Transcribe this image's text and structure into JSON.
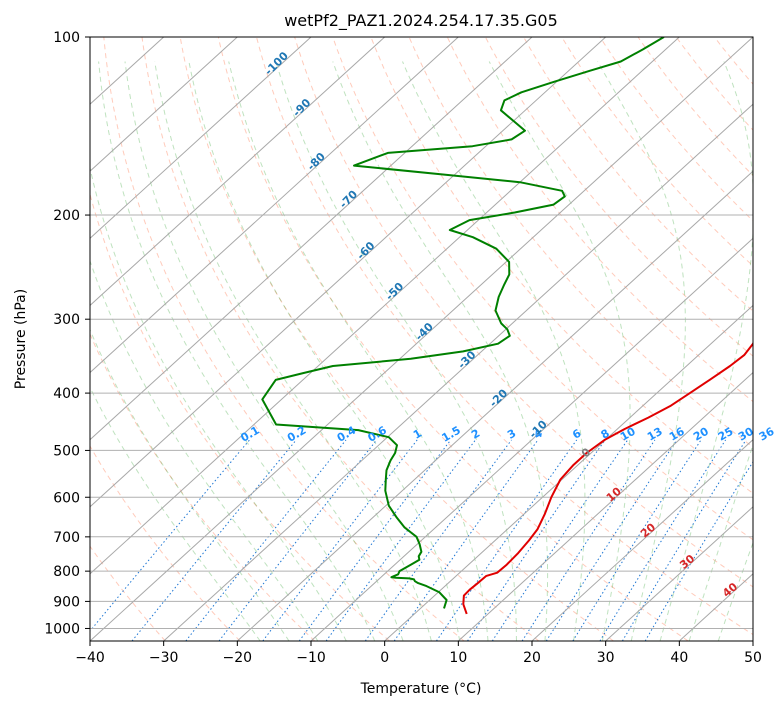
{
  "chart_data": {
    "type": "skew-t log-p",
    "title": "wetPf2_PAZ1.2024.254.17.35.G05",
    "xlabel": "Temperature (°C)",
    "ylabel": "Pressure (hPa)",
    "xlim": [
      -40,
      50
    ],
    "ylim": [
      1050,
      100
    ],
    "y_scale": "log",
    "grid": true,
    "x_ticks": [
      -40,
      -30,
      -20,
      -10,
      0,
      10,
      20,
      30,
      40,
      50
    ],
    "y_ticks": [
      100,
      200,
      300,
      400,
      500,
      600,
      700,
      800,
      900,
      1000
    ],
    "isotherm_labels": [
      {
        "label": "-100",
        "temp": -100,
        "pressure": 112
      },
      {
        "label": "-90",
        "temp": -90,
        "pressure": 133
      },
      {
        "label": "-80",
        "temp": -80,
        "pressure": 164
      },
      {
        "label": "-70",
        "temp": -70,
        "pressure": 190
      },
      {
        "label": "-60",
        "temp": -60,
        "pressure": 232
      },
      {
        "label": "-50",
        "temp": -50,
        "pressure": 272
      },
      {
        "label": "-40",
        "temp": -40,
        "pressure": 318
      },
      {
        "label": "-30",
        "temp": -30,
        "pressure": 355
      },
      {
        "label": "-20",
        "temp": -20,
        "pressure": 412
      },
      {
        "label": "-10",
        "temp": -10,
        "pressure": 465
      }
    ],
    "mixing_ratio_labels": [
      "0.1",
      "0.2",
      "0.4",
      "0.6",
      "1",
      "1.5",
      "2",
      "3",
      "4",
      "6",
      "8",
      "10",
      "13",
      "16",
      "20",
      "25",
      "30",
      "36"
    ],
    "moist_adiabat_labels": [
      "0",
      "10",
      "20",
      "30",
      "40"
    ],
    "series": [
      {
        "name": "",
        "color": "#e00000",
        "points": [
          [
            7.1,
            945
          ],
          [
            5.2,
            910
          ],
          [
            4.0,
            880
          ],
          [
            3.9,
            860
          ],
          [
            4.0,
            840
          ],
          [
            4.1,
            815
          ],
          [
            5.1,
            805
          ],
          [
            5.2,
            780
          ],
          [
            5.0,
            745
          ],
          [
            4.6,
            710
          ],
          [
            4.1,
            680
          ],
          [
            2.8,
            640
          ],
          [
            1.2,
            600
          ],
          [
            -0.2,
            560
          ],
          [
            -0.6,
            530
          ],
          [
            -0.6,
            505
          ],
          [
            -0.1,
            480
          ],
          [
            1.0,
            460
          ],
          [
            2.5,
            440
          ],
          [
            3.8,
            420
          ],
          [
            4.5,
            400
          ],
          [
            5.2,
            380
          ],
          [
            5.9,
            360
          ],
          [
            6.2,
            345
          ],
          [
            5.7,
            330
          ],
          [
            4.6,
            315
          ],
          [
            3.3,
            300
          ],
          [
            2.3,
            285
          ],
          [
            1.7,
            270
          ],
          [
            1.6,
            260
          ],
          [
            2.1,
            250
          ],
          [
            4.2,
            240
          ],
          [
            7.3,
            230
          ],
          [
            10.7,
            220
          ],
          [
            13.6,
            210
          ],
          [
            16.4,
            200
          ],
          [
            19.2,
            190
          ],
          [
            21.6,
            180
          ],
          [
            23.9,
            170
          ],
          [
            25.8,
            160
          ],
          [
            27.6,
            150
          ],
          [
            29.8,
            140
          ],
          [
            33.2,
            130
          ],
          [
            36.4,
            120
          ],
          [
            39.2,
            110
          ],
          [
            42.3,
            100
          ]
        ]
      },
      {
        "name": "",
        "color": "#008000",
        "points": [
          [
            3.2,
            925
          ],
          [
            2.3,
            895
          ],
          [
            0.1,
            868
          ],
          [
            -2.5,
            848
          ],
          [
            -4.1,
            838
          ],
          [
            -4.8,
            832
          ],
          [
            -5.2,
            826
          ],
          [
            -6.0,
            823
          ],
          [
            -7.9,
            821
          ],
          [
            -8.6,
            819
          ],
          [
            -8.1,
            810
          ],
          [
            -8.4,
            800
          ],
          [
            -7.8,
            780
          ],
          [
            -7.4,
            765
          ],
          [
            -8.0,
            755
          ],
          [
            -8.3,
            742
          ],
          [
            -9.7,
            720
          ],
          [
            -11.2,
            700
          ],
          [
            -14.2,
            675
          ],
          [
            -16.7,
            650
          ],
          [
            -19.6,
            620
          ],
          [
            -22.3,
            585
          ],
          [
            -23.9,
            560
          ],
          [
            -25.2,
            540
          ],
          [
            -26.1,
            520
          ],
          [
            -26.6,
            505
          ],
          [
            -27.5,
            490
          ],
          [
            -29.8,
            475
          ],
          [
            -35.0,
            462
          ],
          [
            -47.0,
            452
          ],
          [
            -52.6,
            410
          ],
          [
            -53.7,
            380
          ],
          [
            -51.0,
            370
          ],
          [
            -48.0,
            360
          ],
          [
            -38.5,
            350
          ],
          [
            -32.5,
            340
          ],
          [
            -28.9,
            330
          ],
          [
            -28.5,
            320
          ],
          [
            -29.8,
            312
          ],
          [
            -31.5,
            305
          ],
          [
            -34.2,
            290
          ],
          [
            -35.8,
            275
          ],
          [
            -36.9,
            262
          ],
          [
            -37.7,
            252
          ],
          [
            -39.6,
            240
          ],
          [
            -43.3,
            228
          ],
          [
            -48.2,
            218
          ],
          [
            -52.4,
            212
          ],
          [
            -51.2,
            204
          ],
          [
            -46.2,
            198
          ],
          [
            -42.1,
            192
          ],
          [
            -41.8,
            186
          ],
          [
            -43.0,
            182
          ],
          [
            -50.0,
            176
          ],
          [
            -61.2,
            171
          ],
          [
            -75.0,
            165
          ],
          [
            -72.3,
            157
          ],
          [
            -61.8,
            153
          ],
          [
            -57.5,
            149
          ],
          [
            -57.0,
            144
          ],
          [
            -59.8,
            139
          ],
          [
            -63.3,
            133
          ],
          [
            -64.3,
            128
          ],
          [
            -63.2,
            124
          ],
          [
            -60.3,
            119
          ],
          [
            -57.1,
            114
          ],
          [
            -54.3,
            110
          ],
          [
            -53.1,
            105
          ],
          [
            -52.1,
            100
          ]
        ]
      }
    ]
  }
}
